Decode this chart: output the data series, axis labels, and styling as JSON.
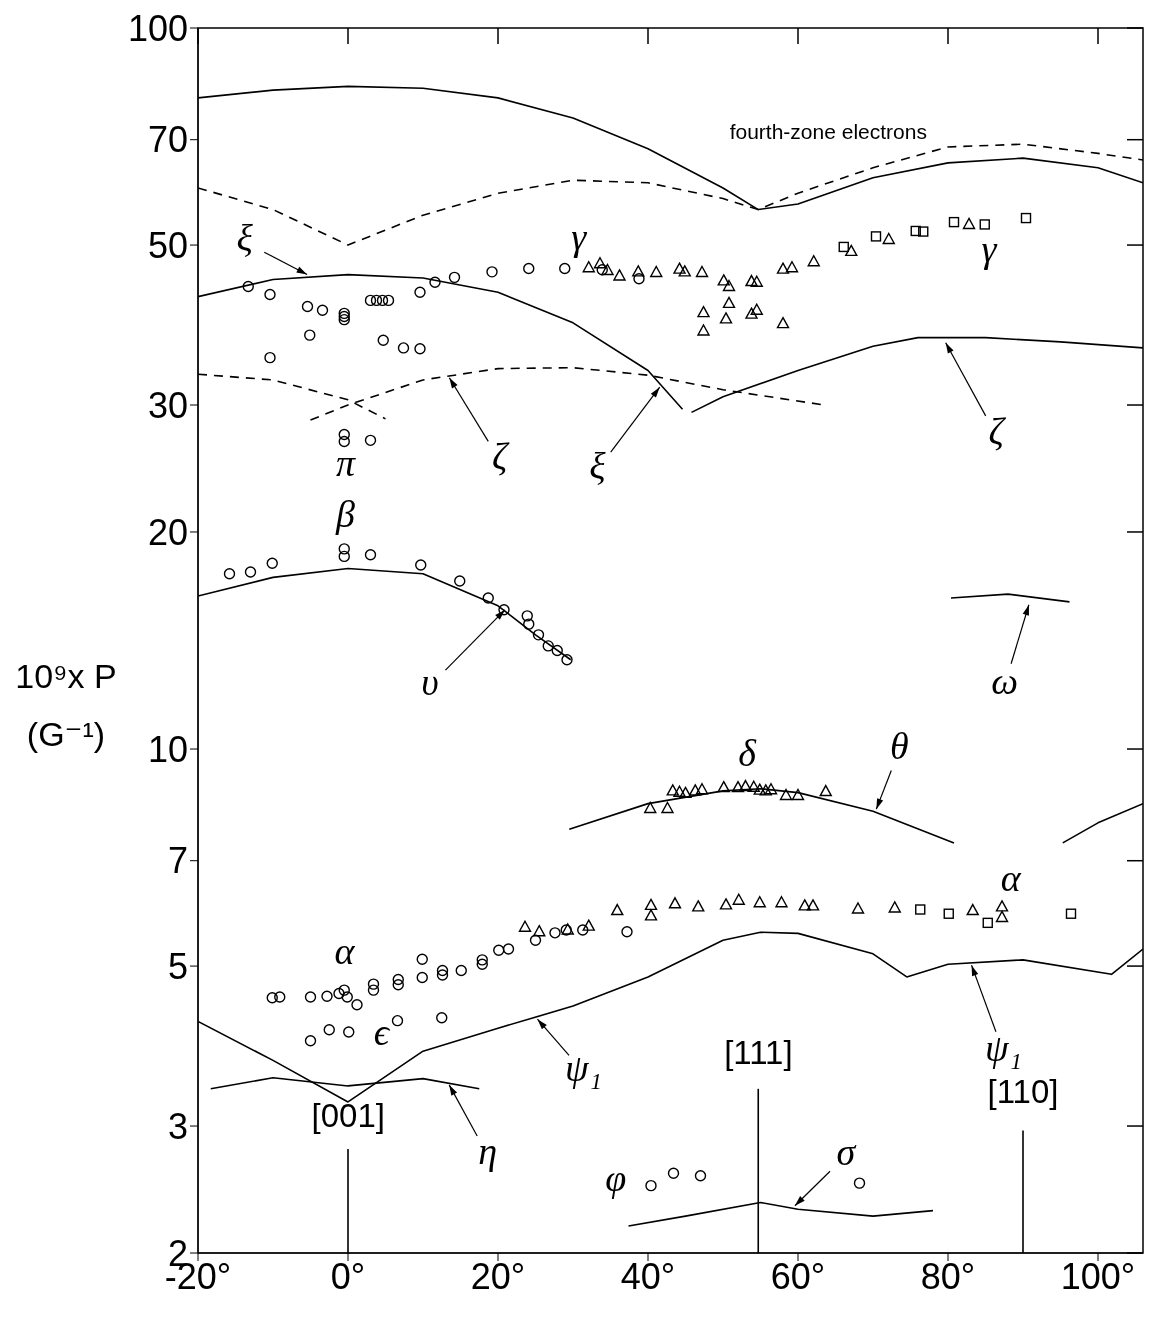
{
  "chart_data": {
    "type": "line",
    "ylabel": "10⁹x P (G⁻¹)",
    "log": "y",
    "xlim": [
      -20,
      106
    ],
    "ylim": [
      2,
      100
    ],
    "xticks": [
      {
        "value": -20,
        "label": "-20°"
      },
      {
        "value": 0,
        "label": "0°"
      },
      {
        "value": 20,
        "label": "20°"
      },
      {
        "value": 40,
        "label": "40°"
      },
      {
        "value": 60,
        "label": "60°"
      },
      {
        "value": 80,
        "label": "80°"
      },
      {
        "value": 100,
        "label": "100°"
      }
    ],
    "yticks": [
      2,
      3,
      5,
      7,
      10,
      20,
      30,
      50,
      70,
      100
    ],
    "series": [
      {
        "line_style": "solid",
        "color": "#000000",
        "x": [
          -20,
          -10,
          0,
          10,
          20,
          30,
          40,
          50,
          54.7,
          60,
          70,
          80,
          90,
          100,
          106
        ],
        "values": [
          80,
          82,
          83,
          82.5,
          80,
          75,
          68,
          60,
          56,
          57,
          62,
          65,
          66,
          64,
          61
        ]
      },
      {
        "type": "line",
        "line_style": "dashed",
        "color": "#000000",
        "x": [
          -20,
          -10,
          0,
          10,
          20,
          30,
          40,
          50,
          54.7,
          60,
          70,
          80,
          90,
          100,
          106
        ],
        "values": [
          60,
          56,
          50,
          55,
          59,
          61.5,
          61,
          58,
          56,
          59,
          64,
          68.4,
          69,
          67,
          65.6
        ]
      },
      {
        "type": "line",
        "line_style": "solid",
        "color": "#000000",
        "x": [
          -20,
          -10,
          0,
          10,
          20,
          30,
          40,
          44.6
        ],
        "values": [
          42.4,
          44.8,
          45.5,
          45,
          43,
          39,
          33.5,
          29.6
        ]
      },
      {
        "type": "line",
        "line_style": "solid",
        "color": "#000000",
        "x": [
          45.8,
          50,
          60,
          70,
          76,
          85,
          95,
          106
        ],
        "values": [
          29.3,
          30.8,
          33.5,
          36.2,
          37.2,
          37.2,
          36.7,
          36
        ]
      },
      {
        "type": "line",
        "line_style": "dashed",
        "color": "#000000",
        "x": [
          -20,
          -10,
          0,
          5
        ],
        "values": [
          33.1,
          32.5,
          30.5,
          28.7
        ]
      },
      {
        "type": "line",
        "line_style": "dashed",
        "color": "#000000",
        "x": [
          -5,
          0,
          10,
          20,
          30,
          40,
          50,
          63.5
        ],
        "values": [
          28.6,
          30,
          32.5,
          33.7,
          33.8,
          33,
          31.5,
          30
        ]
      },
      {
        "type": "line",
        "line_style": "solid",
        "color": "#000000",
        "x": [
          -20,
          -10,
          0,
          10,
          20,
          25,
          29.7
        ],
        "values": [
          16.3,
          17.3,
          17.8,
          17.5,
          15.8,
          14.4,
          13.3
        ]
      },
      {
        "type": "line",
        "line_style": "solid",
        "color": "#000000",
        "x": [
          80.4,
          88,
          96.2
        ],
        "values": [
          16.2,
          16.4,
          16
        ]
      },
      {
        "type": "line",
        "line_style": "solid",
        "color": "#000000",
        "x": [
          29.5,
          40,
          50,
          55,
          60,
          70,
          80.8
        ],
        "values": [
          7.74,
          8.4,
          8.75,
          8.81,
          8.7,
          8.2,
          7.41
        ]
      },
      {
        "type": "line",
        "line_style": "solid",
        "color": "#000000",
        "x": [
          95.3,
          100,
          106
        ],
        "values": [
          7.41,
          7.9,
          8.4
        ]
      },
      {
        "type": "line",
        "line_style": "solid",
        "color": "#000000",
        "x": [
          -20,
          -10,
          0,
          10,
          20,
          30,
          40,
          50,
          55,
          60,
          70,
          74.5,
          80,
          90,
          101.8,
          106
        ],
        "values": [
          4.19,
          3.7,
          3.24,
          3.81,
          4.1,
          4.4,
          4.83,
          5.43,
          5.57,
          5.55,
          5.2,
          4.83,
          5.03,
          5.1,
          4.87,
          5.28
        ]
      },
      {
        "type": "line",
        "line_style": "solid",
        "color": "#000000",
        "x": [
          -18.3,
          -10,
          0,
          10,
          17.5
        ],
        "values": [
          3.38,
          3.5,
          3.41,
          3.49,
          3.38
        ]
      },
      {
        "type": "line",
        "line_style": "solid",
        "color": "#000000",
        "x": [
          37.4,
          45,
          55,
          60,
          70,
          78
        ],
        "values": [
          2.18,
          2.25,
          2.35,
          2.3,
          2.25,
          2.29
        ]
      },
      {
        "type": "scatter",
        "marker": "circle",
        "color": "#000000",
        "x": [
          -13.3,
          -10.4,
          -10.4,
          -5.4,
          -3.4,
          -5.1,
          -0.5,
          -0.5,
          -0.5,
          3.0,
          3.8,
          4.6,
          5.4,
          4.7,
          7.4,
          9.6,
          9.6,
          11.6,
          14.2,
          19.2,
          24.1,
          28.9,
          33.9,
          38.8,
          -0.5,
          -0.5,
          3.0,
          -15.8,
          -13.0,
          -10.1,
          -0.5,
          -0.5,
          3.0,
          9.7,
          14.9,
          18.7,
          20.8,
          23.9,
          24.1,
          25.4,
          26.7,
          27.9,
          29.2,
          -10.1,
          -9.1,
          -5,
          -2.8,
          -1.2,
          -0.5,
          -0.1,
          1.2,
          3.4,
          3.4,
          6.7,
          6.7,
          9.9,
          9.9,
          12.6,
          12.6,
          15.1,
          17.9,
          17.9,
          20.1,
          21.4,
          25,
          27.6,
          29.1,
          31.3,
          37.2,
          -5,
          -2.5,
          0.1,
          6.6,
          12.5,
          40.4,
          43.4,
          47.0,
          68.2
        ],
        "values": [
          43.8,
          42.7,
          34.9,
          41.1,
          40.6,
          37.5,
          39.8,
          39.4,
          40.2,
          41.9,
          41.9,
          41.9,
          41.9,
          36.9,
          36.0,
          35.9,
          43.0,
          44.4,
          45.1,
          45.9,
          46.4,
          46.4,
          46.2,
          44.9,
          27.3,
          26.7,
          26.8,
          17.5,
          17.6,
          18.1,
          18.95,
          18.5,
          18.6,
          18.0,
          17.1,
          16.2,
          15.6,
          15.3,
          14.9,
          14.4,
          13.9,
          13.7,
          13.3,
          4.52,
          4.53,
          4.53,
          4.54,
          4.58,
          4.63,
          4.53,
          4.42,
          4.72,
          4.63,
          4.79,
          4.71,
          5.11,
          4.82,
          4.93,
          4.86,
          4.93,
          5.1,
          5.03,
          5.26,
          5.28,
          5.43,
          5.56,
          5.61,
          5.61,
          5.58,
          3.94,
          4.08,
          4.05,
          4.2,
          4.24,
          2.48,
          2.58,
          2.56,
          2.5
        ]
      },
      {
        "type": "scatter",
        "marker": "triangle",
        "color": "#000000",
        "x": [
          32.1,
          33.6,
          34.6,
          36.2,
          38.7,
          41.1,
          44.2,
          44.9,
          47.2,
          50.1,
          50.8,
          53.8,
          54.5,
          58.0,
          59.2,
          62.1,
          47.4,
          47.4,
          50.4,
          50.8,
          53.8,
          54.5,
          58.0,
          67.1,
          72.1,
          82.8,
          40.3,
          42.6,
          43.3,
          44.2,
          45,
          46.3,
          47.2,
          50.1,
          52,
          53,
          54.1,
          54.9,
          55.7,
          56.4,
          58.4,
          60,
          63.7,
          23.6,
          25.5,
          29.3,
          32.1,
          35.9,
          40.4,
          40.4,
          43.6,
          46.7,
          50.4,
          52.1,
          54.9,
          57.8,
          60.9,
          62,
          68,
          72.9,
          83.3,
          87.2,
          87.2
        ],
        "values": [
          46.5,
          47.1,
          46.1,
          45.3,
          45.9,
          45.8,
          46.3,
          45.9,
          45.8,
          44.6,
          43.8,
          44.5,
          44.4,
          46.3,
          46.5,
          47.4,
          40.3,
          38.0,
          39.5,
          41.5,
          40.1,
          40.6,
          38.9,
          49.0,
          50.9,
          53.4,
          8.27,
          8.27,
          8.75,
          8.71,
          8.68,
          8.75,
          8.78,
          8.84,
          8.84,
          8.87,
          8.85,
          8.77,
          8.75,
          8.78,
          8.62,
          8.62,
          8.73,
          5.66,
          5.58,
          5.61,
          5.68,
          5.97,
          6.07,
          5.87,
          6.1,
          6.04,
          6.08,
          6.17,
          6.12,
          6.12,
          6.06,
          6.06,
          6.0,
          6.02,
          5.97,
          6.04,
          5.84
        ]
      },
      {
        "type": "scatter",
        "marker": "square",
        "color": "#000000",
        "x": [
          66.1,
          70.4,
          75.7,
          76.7,
          80.8,
          84.9,
          90.4,
          76.3,
          80.1,
          85.3,
          96.4
        ],
        "values": [
          49.7,
          51.4,
          52.3,
          52.2,
          53.8,
          53.4,
          54.5,
          5.99,
          5.91,
          5.74,
          5.91
        ]
      }
    ],
    "ref_lines": [
      {
        "axis": "x",
        "value": 0
      },
      {
        "axis": "x",
        "value": 54.7
      },
      {
        "axis": "x",
        "value": 90
      }
    ],
    "annotations": [
      "fourth-zone electrons",
      {
        "text": "ξ",
        "x": -5.1,
        "y": 45.3
      },
      "γ",
      "γ",
      "π",
      {
        "text": "ζ",
        "x": 13.3,
        "y": 33.0
      },
      {
        "text": "ξ",
        "x": 41.8,
        "y": 32.0
      },
      {
        "text": "ζ",
        "x": 79.5,
        "y": 36.9
      },
      "β",
      {
        "text": "υ",
        "x": 21.2,
        "y": 15.7
      },
      {
        "text": "ω",
        "x": 90.9,
        "y": 16.0
      },
      {
        "text": "θ",
        "x": 70.3,
        "y": 8.18
      },
      "δ",
      "α",
      "α",
      "ϵ",
      {
        "text": "ψ₁",
        "x": 25,
        "y": 4.25
      },
      {
        "text": "ψ₁",
        "x": 83,
        "y": 5.06
      },
      {
        "text": "η",
        "x": 13.3,
        "y": 3.45
      },
      {
        "text": "σ",
        "x": 59.3,
        "y": 2.31
      },
      "φ",
      "[001]",
      "[111]",
      "[110]"
    ]
  }
}
